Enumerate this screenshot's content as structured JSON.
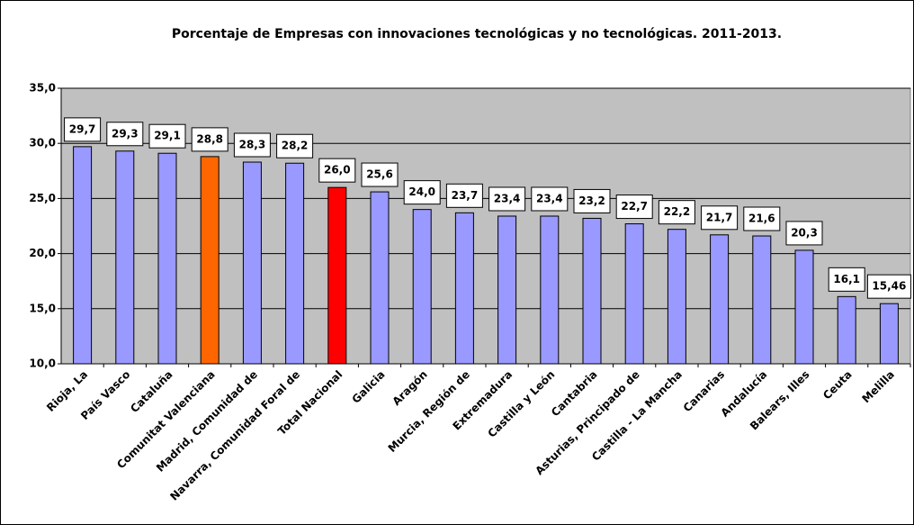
{
  "chart_data": {
    "type": "bar",
    "title": "Porcentaje de Empresas con innovaciones tecnológicas y no tecnológicas. 2011-2013.",
    "categories": [
      "Rioja, La",
      "País Vasco",
      "Cataluña",
      "Comunitat Valenciana",
      "Madrid, Comunidad de",
      "Navarra, Comunidad Foral de",
      "Total Nacional",
      "Galicia",
      "Aragón",
      "Murcia, Región de",
      "Extremadura",
      "Castilla y León",
      "Cantabria",
      "Asturias, Principado de",
      "Castilla - La Mancha",
      "Canarias",
      "Andalucía",
      "Balears, Illes",
      "Ceuta",
      "Melilla"
    ],
    "values": [
      29.7,
      29.3,
      29.1,
      28.8,
      28.3,
      28.2,
      26.0,
      25.6,
      24.0,
      23.7,
      23.4,
      23.4,
      23.2,
      22.7,
      22.2,
      21.7,
      21.6,
      20.3,
      16.1,
      15.46
    ],
    "value_labels": [
      "29,7",
      "29,3",
      "29,1",
      "28,8",
      "28,3",
      "28,2",
      "26,0",
      "25,6",
      "24,0",
      "23,7",
      "23,4",
      "23,4",
      "23,2",
      "22,7",
      "22,2",
      "21,7",
      "21,6",
      "20,3",
      "16,1",
      "15,46"
    ],
    "colors": [
      "#9999ff",
      "#9999ff",
      "#9999ff",
      "#ff6600",
      "#9999ff",
      "#9999ff",
      "#ff0000",
      "#9999ff",
      "#9999ff",
      "#9999ff",
      "#9999ff",
      "#9999ff",
      "#9999ff",
      "#9999ff",
      "#9999ff",
      "#9999ff",
      "#9999ff",
      "#9999ff",
      "#9999ff",
      "#9999ff"
    ],
    "ylim": [
      10,
      35
    ],
    "yticks": [
      {
        "value": 10,
        "label": "10,0"
      },
      {
        "value": 15,
        "label": "15,0"
      },
      {
        "value": 20,
        "label": "20,0"
      },
      {
        "value": 25,
        "label": "25,0"
      },
      {
        "value": 30,
        "label": "30,0"
      },
      {
        "value": 35,
        "label": "35,0"
      }
    ],
    "grid": true
  }
}
